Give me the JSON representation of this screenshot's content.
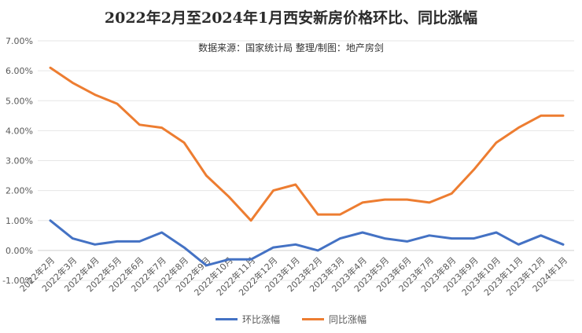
{
  "title": "2022年2月至2024年1月西安新房价格环比、同比涨幅",
  "subtitle": "数据来源：国家统计局 整理/制图：地产房剑",
  "chart_data": {
    "type": "line",
    "categories": [
      "2022年2月",
      "2022年3月",
      "2022年4月",
      "2022年5月",
      "2022年6月",
      "2022年7月",
      "2022年8月",
      "2022年9月",
      "2022年10月",
      "2022年11月",
      "2022年12月",
      "2023年1月",
      "2023年2月",
      "2023年3月",
      "2023年4月",
      "2023年5月",
      "2023年6月",
      "2023年7月",
      "2023年8月",
      "2023年9月",
      "2023年10月",
      "2023年11月",
      "2023年12月",
      "2024年1月"
    ],
    "series": [
      {
        "name": "环比涨幅",
        "color": "#4472C4",
        "values": [
          1.0,
          0.4,
          0.2,
          0.3,
          0.3,
          0.6,
          0.1,
          -0.5,
          -0.3,
          -0.3,
          0.1,
          0.2,
          0.0,
          0.4,
          0.6,
          0.4,
          0.3,
          0.5,
          0.4,
          0.4,
          0.6,
          0.2,
          0.5,
          0.2
        ]
      },
      {
        "name": "同比涨幅",
        "color": "#ED7D31",
        "values": [
          6.1,
          5.6,
          5.2,
          4.9,
          4.2,
          4.1,
          3.6,
          2.5,
          1.8,
          1.0,
          2.0,
          2.2,
          1.2,
          1.2,
          1.6,
          1.7,
          1.7,
          1.6,
          1.9,
          2.7,
          3.6,
          4.1,
          4.5,
          4.5
        ]
      }
    ],
    "ylim": [
      -1,
      7
    ],
    "yticks": [
      "-1.00%",
      "0.00%",
      "1.00%",
      "2.00%",
      "3.00%",
      "4.00%",
      "5.00%",
      "6.00%",
      "7.00%"
    ],
    "grid": true,
    "legend": "bottom"
  }
}
